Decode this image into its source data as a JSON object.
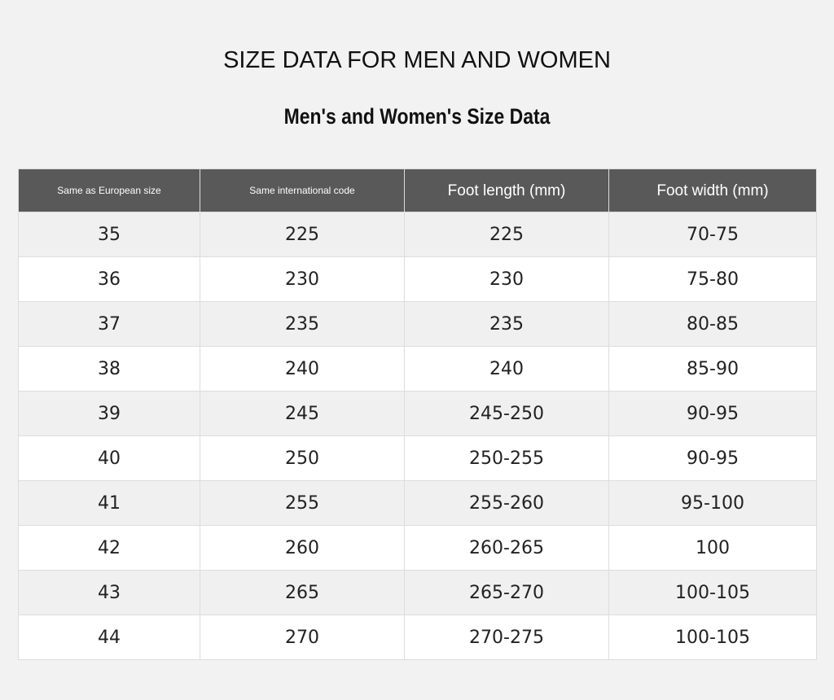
{
  "header": {
    "title": "SIZE DATA FOR MEN AND WOMEN",
    "subtitle": "Men's and Women's Size Data"
  },
  "table": {
    "columns": [
      "Same as European size",
      "Same international code",
      "Foot length (mm)",
      "Foot width (mm)"
    ],
    "rows": [
      [
        "35",
        "225",
        "225",
        "70-75"
      ],
      [
        "36",
        "230",
        "230",
        "75-80"
      ],
      [
        "37",
        "235",
        "235",
        "80-85"
      ],
      [
        "38",
        "240",
        "240",
        "85-90"
      ],
      [
        "39",
        "245",
        "245-250",
        "90-95"
      ],
      [
        "40",
        "250",
        "250-255",
        "90-95"
      ],
      [
        "41",
        "255",
        "255-260",
        "95-100"
      ],
      [
        "42",
        "260",
        "260-265",
        "100"
      ],
      [
        "43",
        "265",
        "265-270",
        "100-105"
      ],
      [
        "44",
        "270",
        "270-275",
        "100-105"
      ]
    ]
  }
}
